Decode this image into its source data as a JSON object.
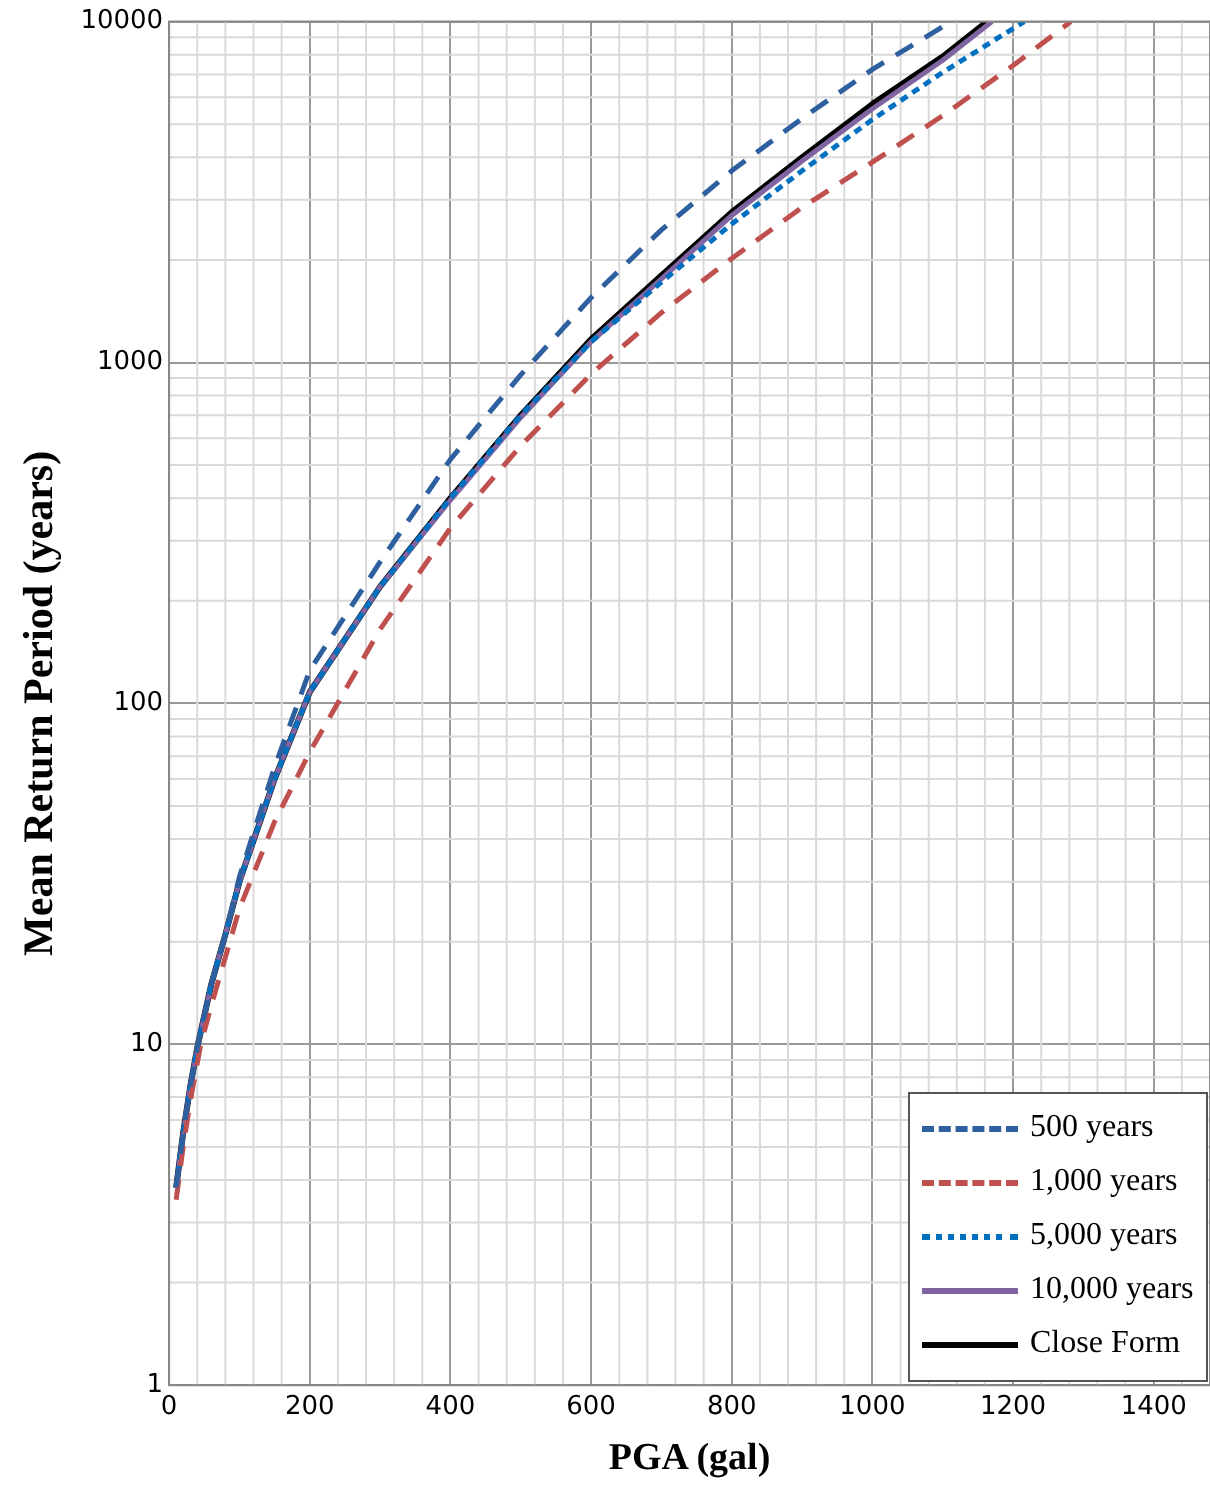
{
  "chart_data": {
    "type": "line",
    "xlabel": "PGA (gal)",
    "ylabel": "Mean Return Period (years)",
    "xlim": [
      0,
      1480
    ],
    "xticks": [
      0,
      200,
      400,
      600,
      800,
      1000,
      1200,
      1400
    ],
    "ylim": [
      1,
      10000
    ],
    "yticks": [
      1,
      10,
      100,
      1000,
      10000
    ],
    "log": "y",
    "grid": true,
    "legend": "bottom right",
    "marker": "none",
    "series": [
      {
        "name": "500 years",
        "color": "#2e5f9e",
        "line_style": "dashed",
        "x": [
          10,
          20,
          30,
          41,
          60,
          80,
          100,
          150,
          200,
          300,
          400,
          500,
          600,
          700,
          800,
          900,
          1000,
          1112
        ],
        "values": [
          3.8,
          5.5,
          7.5,
          10,
          15,
          21,
          31,
          65,
          125,
          260,
          520,
          920,
          1550,
          2450,
          3650,
          5200,
          7240,
          10000
        ]
      },
      {
        "name": "1,000 years",
        "color": "#c0504d",
        "line_style": "dashed",
        "x": [
          10,
          20,
          30,
          45,
          60,
          80,
          100,
          150,
          200,
          300,
          400,
          500,
          600,
          700,
          800,
          900,
          1000,
          1100,
          1200,
          1282
        ],
        "values": [
          3.5,
          5,
          6.8,
          10,
          13,
          18,
          25,
          45,
          72,
          165,
          327,
          570,
          925,
          1400,
          2020,
          2850,
          3870,
          5300,
          7430,
          10000
        ]
      },
      {
        "name": "5,000 years",
        "color": "#0070c0",
        "line_style": "dotted",
        "x": [
          10,
          20,
          30,
          41,
          60,
          80,
          100,
          150,
          200,
          300,
          400,
          500,
          600,
          700,
          800,
          900,
          1000,
          1100,
          1216
        ],
        "values": [
          3.8,
          5.5,
          7.5,
          10,
          15,
          21,
          30,
          60,
          108,
          220,
          400,
          700,
          1150,
          1720,
          2550,
          3650,
          5160,
          7100,
          10000
        ]
      },
      {
        "name": "10,000 years",
        "color": "#8064a2",
        "line_style": "solid",
        "x": [
          10,
          20,
          30,
          41,
          60,
          80,
          100,
          150,
          200,
          300,
          400,
          500,
          600,
          700,
          800,
          900,
          1000,
          1100,
          1170
        ],
        "values": [
          3.8,
          5.5,
          7.5,
          10,
          15,
          21,
          30,
          60,
          108,
          220,
          395,
          690,
          1150,
          1760,
          2700,
          3900,
          5550,
          7700,
          10000
        ]
      },
      {
        "name": "Close Form",
        "color": "#000000",
        "line_style": "solid",
        "x": [
          10,
          20,
          30,
          41,
          60,
          80,
          100,
          150,
          200,
          300,
          400,
          500,
          600,
          700,
          800,
          900,
          1000,
          1100,
          1163
        ],
        "values": [
          3.8,
          5.5,
          7.5,
          10,
          15,
          21,
          30,
          60,
          108,
          220,
          400,
          700,
          1170,
          1800,
          2760,
          4000,
          5730,
          7900,
          10000
        ]
      }
    ]
  }
}
